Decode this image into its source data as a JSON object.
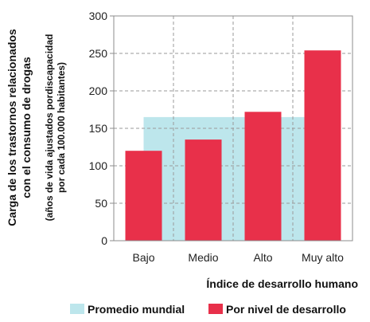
{
  "chart_data": {
    "type": "bar",
    "categories": [
      "Bajo",
      "Medio",
      "Alto",
      "Muy alto"
    ],
    "series": [
      {
        "name": "Promedio mundial",
        "values": [
          165,
          165,
          165,
          165
        ],
        "color": "#bde6ec"
      },
      {
        "name": "Por nivel de desarrollo",
        "values": [
          120,
          135,
          172,
          254
        ],
        "color": "#e8304a"
      }
    ],
    "y_ticks": [
      0,
      50,
      100,
      150,
      200,
      250,
      300
    ],
    "ylim": [
      0,
      300
    ],
    "ylabel_line1": "Carga de los trastornos relacionados",
    "ylabel_line2": "con el consumo de drogas",
    "ylabel_sub1": "(años de vida ajustados pordiscapacidad",
    "ylabel_sub2": "por cada 100.000 habitantes)",
    "xlabel": "Índice de desarrollo humano",
    "grid": true,
    "legend_position": "bottom"
  }
}
